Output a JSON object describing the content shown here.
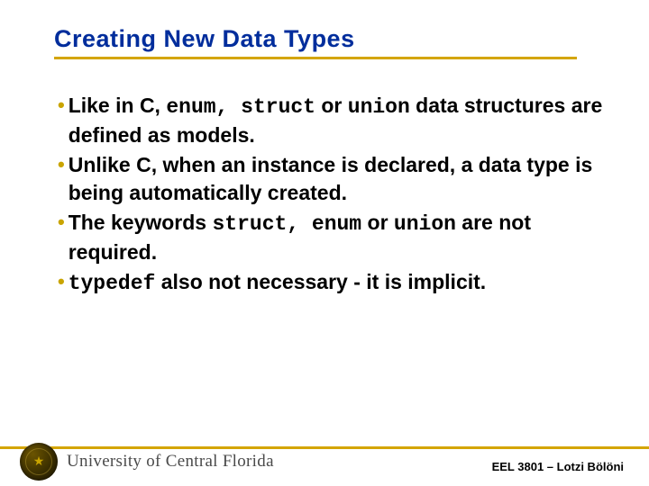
{
  "colors": {
    "title": "#002d9c",
    "accent": "#d4a500",
    "bullet": "#c9a400",
    "text": "#000000",
    "background": "#ffffff",
    "uniname": "#4a4a4a"
  },
  "title": "Creating New Data Types",
  "bullets": [
    {
      "pre": "Like in C, ",
      "code1": "enum, struct",
      "mid": " or ",
      "code2": "union",
      "post": " data structures are defined as models."
    },
    {
      "pre": "Unlike C, when an instance is declared, a data type is being automatically created.",
      "code1": "",
      "mid": "",
      "code2": "",
      "post": ""
    },
    {
      "pre": "The keywords ",
      "code1": "struct, enum",
      "mid": " or ",
      "code2": "union",
      "post": " are  not required."
    },
    {
      "pre": "",
      "code1": "typedef",
      "mid": " also not necessary - it is implicit.",
      "code2": "",
      "post": ""
    }
  ],
  "footer": {
    "university": "University of Central Florida",
    "course": "EEL 3801 – Lotzi Bölöni"
  }
}
